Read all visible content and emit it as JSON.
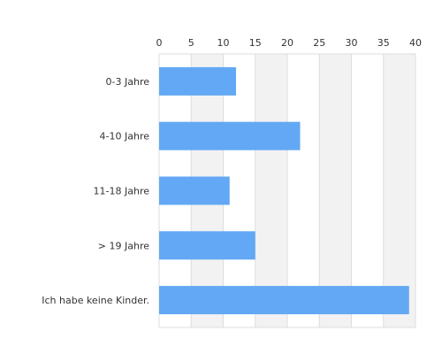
{
  "chart_data": {
    "type": "bar",
    "orientation": "horizontal",
    "categories": [
      "0-3 Jahre",
      "4-10 Jahre",
      "11-18 Jahre",
      "> 19 Jahre",
      "Ich habe keine Kinder."
    ],
    "values": [
      12,
      22,
      11,
      15,
      39
    ],
    "xticks": [
      "0",
      "5",
      "10",
      "15",
      "20",
      "25",
      "30",
      "35",
      "40"
    ],
    "xlim": [
      0,
      40
    ],
    "x_axis_position": "top",
    "alternating_grid_bands": true,
    "legend": "none",
    "colors": {
      "bar": "#63a8f4",
      "band": "#f2f2f2",
      "grid": "#dddddd",
      "text": "#333333"
    }
  }
}
